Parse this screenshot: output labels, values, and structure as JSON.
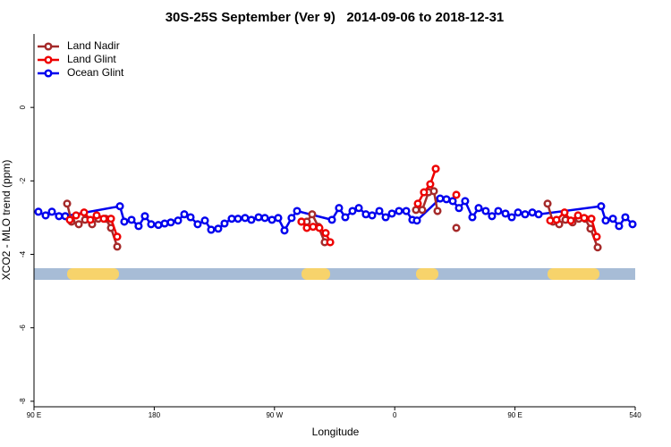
{
  "chart_data": {
    "type": "line",
    "title": "30S-25S September (Ver 9)   2014-09-06 to 2018-12-31",
    "xlabel": "Longitude",
    "ylabel": "XCO2 - MLO trend (ppm)",
    "xlim": [
      90,
      540
    ],
    "xticks": [
      {
        "value": 90,
        "label": "90 E"
      },
      180,
      {
        "value": 270,
        "label": "90 W"
      },
      {
        "value": 360,
        "label": "0"
      },
      {
        "value": 450,
        "label": "90 E"
      },
      540
    ],
    "ylim": [
      -8.15,
      2
    ],
    "yticks": [
      0,
      -2,
      -4,
      -6,
      -8
    ],
    "legend": "top-left",
    "series": [
      {
        "name": "Land Nadir",
        "color": "#a52a2a",
        "x": [
          114.8,
          118.1,
          123.5,
          128.2,
          133.5,
          138.2,
          143.6,
          147.6,
          152.3,
          null,
          290.2,
          294.2,
          298.2,
          302.9,
          307.6,
          null,
          375.9,
          380.6,
          385.3,
          389.3,
          392.0,
          null,
          406.1,
          null,
          474.4,
          478.4,
          483.1,
          487.8,
          493.1,
          497.8,
          502.5,
          506.5,
          511.9
        ],
        "values": [
          -2.62,
          -3.11,
          -3.18,
          -3.06,
          -3.18,
          -3.03,
          -3.03,
          -3.28,
          -3.79,
          null,
          -3.11,
          -3.11,
          -2.91,
          -3.25,
          -3.67,
          null,
          -2.79,
          -2.79,
          -2.31,
          -2.28,
          -2.82,
          null,
          -3.28,
          null,
          -2.62,
          -3.11,
          -3.18,
          -3.06,
          -3.13,
          -3.03,
          -3.03,
          -3.3,
          -3.81
        ]
      },
      {
        "name": "Land Glint",
        "color": "#ee0000",
        "x": [
          116.8,
          121.5,
          127.5,
          132.2,
          136.9,
          142.2,
          147.6,
          152.3,
          null,
          290.2,
          294.2,
          298.9,
          303.6,
          308.3,
          311.7,
          null,
          377.3,
          381.9,
          386.6,
          390.7,
          null,
          406.1,
          null,
          476.4,
          481.1,
          487.1,
          491.8,
          497.2,
          501.8,
          507.2,
          511.2
        ],
        "values": [
          -3.06,
          -2.94,
          -2.86,
          -3.06,
          -2.94,
          -3.03,
          -3.03,
          -3.52,
          null,
          -3.11,
          -3.28,
          -3.25,
          -3.28,
          -3.42,
          -3.67,
          null,
          -2.62,
          -2.31,
          -2.09,
          -1.67,
          null,
          -2.38,
          null,
          -3.08,
          -3.06,
          -2.86,
          -3.08,
          -2.94,
          -3.01,
          -3.03,
          -3.52
        ]
      },
      {
        "name": "Ocean Glint",
        "color": "#0000ee",
        "x": [
          93.3,
          98.7,
          103.4,
          108.7,
          113.4,
          154.3,
          157.6,
          163.0,
          168.3,
          173.0,
          177.7,
          183.1,
          187.8,
          192.4,
          197.8,
          202.5,
          207.2,
          212.5,
          217.9,
          222.6,
          227.9,
          232.6,
          238.0,
          242.7,
          248.0,
          252.7,
          258.1,
          262.8,
          268.1,
          272.8,
          277.5,
          282.8,
          286.9,
          313.0,
          318.3,
          323.0,
          328.4,
          333.1,
          338.4,
          343.1,
          348.5,
          353.2,
          357.9,
          363.2,
          368.6,
          373.2,
          376.6,
          394.0,
          398.7,
          403.4,
          408.1,
          412.7,
          418.1,
          422.8,
          428.1,
          432.8,
          437.5,
          442.9,
          447.6,
          452.3,
          457.6,
          463.0,
          467.7,
          514.5,
          517.9,
          523.3,
          527.9,
          532.6,
          538.0
        ],
        "values": [
          -2.84,
          -2.94,
          -2.84,
          -2.96,
          -2.96,
          -2.69,
          -3.11,
          -3.06,
          -3.23,
          -2.96,
          -3.18,
          -3.2,
          -3.16,
          -3.13,
          -3.08,
          -2.91,
          -2.99,
          -3.18,
          -3.08,
          -3.33,
          -3.3,
          -3.16,
          -3.03,
          -3.03,
          -3.01,
          -3.06,
          -2.99,
          -3.01,
          -3.06,
          -3.01,
          -3.35,
          -3.01,
          -2.82,
          -3.06,
          -2.74,
          -2.99,
          -2.82,
          -2.74,
          -2.91,
          -2.94,
          -2.82,
          -2.99,
          -2.89,
          -2.82,
          -2.82,
          -3.06,
          -3.08,
          -2.48,
          -2.5,
          -2.55,
          -2.74,
          -2.55,
          -2.99,
          -2.74,
          -2.82,
          -2.96,
          -2.82,
          -2.89,
          -2.99,
          -2.86,
          -2.91,
          -2.86,
          -2.91,
          -2.69,
          -3.08,
          -3.03,
          -3.23,
          -2.99,
          -3.18
        ]
      }
    ]
  }
}
